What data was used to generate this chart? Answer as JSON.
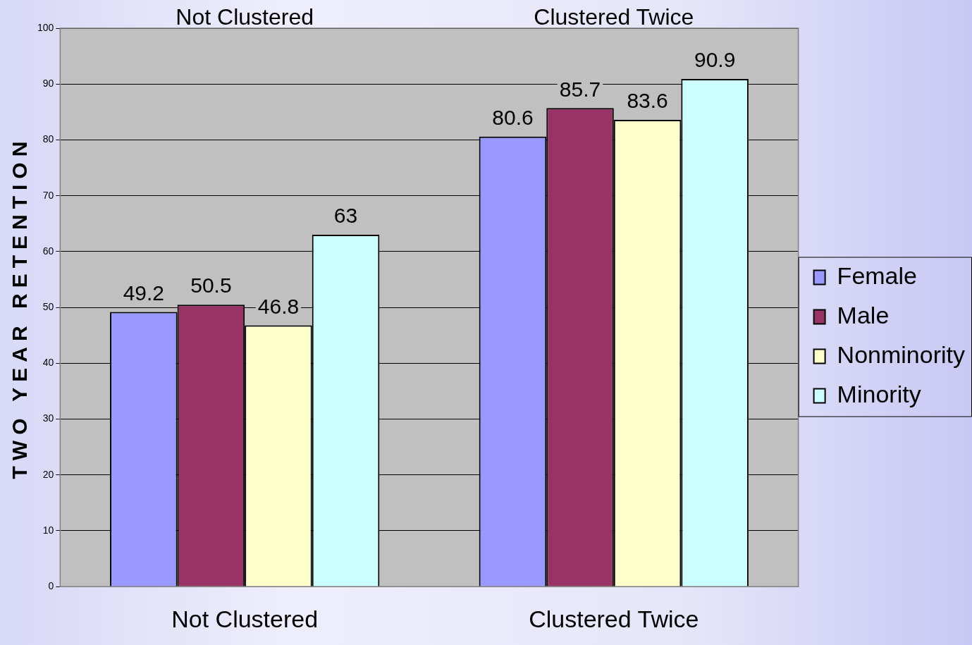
{
  "chart_data": {
    "type": "bar",
    "ylabel": "TWO YEAR RETENTION",
    "categories": [
      "Not Clustered",
      "Clustered Twice"
    ],
    "series": [
      {
        "name": "Female",
        "color": "#9999ff",
        "values": [
          49.2,
          80.6
        ]
      },
      {
        "name": "Male",
        "color": "#993366",
        "values": [
          50.5,
          85.7
        ]
      },
      {
        "name": "Nonminority",
        "color": "#ffffcc",
        "values": [
          46.8,
          83.6
        ]
      },
      {
        "name": "Minority",
        "color": "#ccffff",
        "values": [
          63,
          90.9
        ]
      }
    ],
    "ylim": [
      0,
      100
    ],
    "yticks": [
      0,
      10,
      20,
      30,
      40,
      50,
      60,
      70,
      80,
      90,
      100
    ],
    "annotations": [
      "Not Clustered",
      "Clustered Twice"
    ],
    "data_labels": true,
    "grid": "y",
    "legend": "right"
  }
}
